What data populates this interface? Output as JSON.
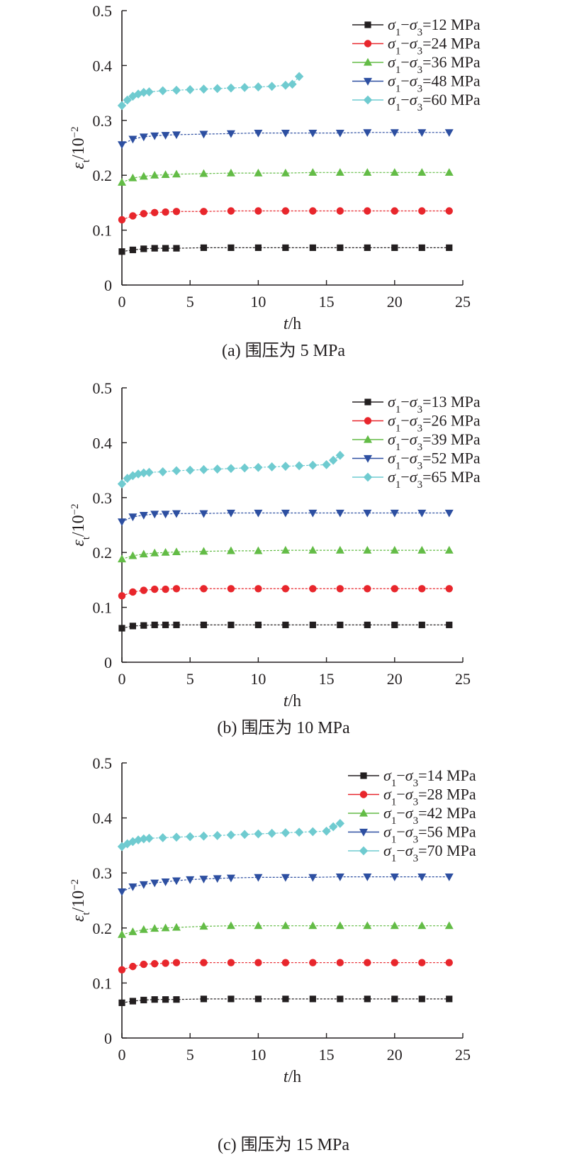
{
  "chart_data": [
    {
      "type": "line",
      "caption": "(a) 围压为 5 MPa",
      "xlabel": "t/h",
      "ylabel": "εt/10−2",
      "xlim": [
        0,
        25
      ],
      "ylim": [
        0,
        0.5
      ],
      "xticks": [
        "0",
        "5",
        "10",
        "15",
        "20",
        "25"
      ],
      "yticks": [
        "0",
        "0.1",
        "0.2",
        "0.3",
        "0.4",
        "0.5"
      ],
      "grid": false,
      "legend_position": "top-right",
      "series": [
        {
          "name": "σ1−σ3=12 MPa",
          "color": "#231f20",
          "marker": "square",
          "x": [
            0,
            0.8,
            1.6,
            2.4,
            3.2,
            4,
            6,
            8,
            10,
            12,
            14,
            16,
            18,
            20,
            22,
            24
          ],
          "y": [
            0.061,
            0.064,
            0.066,
            0.067,
            0.067,
            0.067,
            0.068,
            0.068,
            0.068,
            0.068,
            0.068,
            0.068,
            0.068,
            0.068,
            0.068,
            0.068
          ]
        },
        {
          "name": "σ1−σ3=24 MPa",
          "color": "#e8262c",
          "marker": "circle",
          "x": [
            0,
            0.8,
            1.6,
            2.4,
            3.2,
            4,
            6,
            8,
            10,
            12,
            14,
            16,
            18,
            20,
            22,
            24
          ],
          "y": [
            0.119,
            0.126,
            0.13,
            0.132,
            0.133,
            0.134,
            0.134,
            0.135,
            0.135,
            0.135,
            0.135,
            0.135,
            0.135,
            0.135,
            0.135,
            0.135
          ]
        },
        {
          "name": "σ1−σ3=36 MPa",
          "color": "#63bc46",
          "marker": "triangle-up",
          "x": [
            0,
            0.8,
            1.6,
            2.4,
            3.2,
            4,
            6,
            8,
            10,
            12,
            14,
            16,
            18,
            20,
            22,
            24
          ],
          "y": [
            0.187,
            0.195,
            0.198,
            0.2,
            0.201,
            0.202,
            0.203,
            0.204,
            0.204,
            0.204,
            0.205,
            0.205,
            0.205,
            0.205,
            0.205,
            0.205
          ]
        },
        {
          "name": "σ1−σ3=48 MPa",
          "color": "#2d4fa1",
          "marker": "triangle-down",
          "x": [
            0,
            0.8,
            1.6,
            2.4,
            3.2,
            4,
            6,
            8,
            10,
            12,
            14,
            16,
            18,
            20,
            22,
            24
          ],
          "y": [
            0.256,
            0.266,
            0.27,
            0.272,
            0.273,
            0.274,
            0.275,
            0.276,
            0.277,
            0.277,
            0.277,
            0.277,
            0.278,
            0.278,
            0.278,
            0.278
          ]
        },
        {
          "name": "σ1−σ3=60 MPa",
          "color": "#6fcbd0",
          "marker": "diamond",
          "x": [
            0,
            0.4,
            0.8,
            1.2,
            1.6,
            2,
            3,
            4,
            5,
            6,
            7,
            8,
            9,
            10,
            11,
            12,
            12.5,
            13
          ],
          "y": [
            0.327,
            0.337,
            0.344,
            0.348,
            0.351,
            0.352,
            0.354,
            0.355,
            0.356,
            0.357,
            0.358,
            0.359,
            0.36,
            0.361,
            0.362,
            0.364,
            0.366,
            0.38
          ]
        }
      ]
    },
    {
      "type": "line",
      "caption": "(b) 围压为 10 MPa",
      "xlabel": "t/h",
      "ylabel": "εt/10−2",
      "xlim": [
        0,
        25
      ],
      "ylim": [
        0,
        0.5
      ],
      "xticks": [
        "0",
        "5",
        "10",
        "15",
        "20",
        "25"
      ],
      "yticks": [
        "0",
        "0.1",
        "0.2",
        "0.3",
        "0.4",
        "0.5"
      ],
      "grid": false,
      "legend_position": "top-right",
      "series": [
        {
          "name": "σ1−σ3=13 MPa",
          "color": "#231f20",
          "marker": "square",
          "x": [
            0,
            0.8,
            1.6,
            2.4,
            3.2,
            4,
            6,
            8,
            10,
            12,
            14,
            16,
            18,
            20,
            22,
            24
          ],
          "y": [
            0.062,
            0.066,
            0.067,
            0.068,
            0.068,
            0.068,
            0.068,
            0.068,
            0.068,
            0.068,
            0.068,
            0.068,
            0.068,
            0.068,
            0.068,
            0.068
          ]
        },
        {
          "name": "σ1−σ3=26 MPa",
          "color": "#e8262c",
          "marker": "circle",
          "x": [
            0,
            0.8,
            1.6,
            2.4,
            3.2,
            4,
            6,
            8,
            10,
            12,
            14,
            16,
            18,
            20,
            22,
            24
          ],
          "y": [
            0.121,
            0.128,
            0.131,
            0.133,
            0.133,
            0.134,
            0.134,
            0.134,
            0.134,
            0.134,
            0.134,
            0.134,
            0.134,
            0.134,
            0.134,
            0.134
          ]
        },
        {
          "name": "σ1−σ3=39 MPa",
          "color": "#63bc46",
          "marker": "triangle-up",
          "x": [
            0,
            0.8,
            1.6,
            2.4,
            3.2,
            4,
            6,
            8,
            10,
            12,
            14,
            16,
            18,
            20,
            22,
            24
          ],
          "y": [
            0.188,
            0.194,
            0.197,
            0.199,
            0.2,
            0.201,
            0.202,
            0.203,
            0.203,
            0.204,
            0.204,
            0.204,
            0.204,
            0.204,
            0.204,
            0.204
          ]
        },
        {
          "name": "σ1−σ3=52 MPa",
          "color": "#2d4fa1",
          "marker": "triangle-down",
          "x": [
            0,
            0.8,
            1.6,
            2.4,
            3.2,
            4,
            6,
            8,
            10,
            12,
            14,
            16,
            18,
            20,
            22,
            24
          ],
          "y": [
            0.256,
            0.265,
            0.268,
            0.27,
            0.27,
            0.271,
            0.271,
            0.272,
            0.272,
            0.272,
            0.272,
            0.272,
            0.272,
            0.272,
            0.272,
            0.272
          ]
        },
        {
          "name": "σ1−σ3=65 MPa",
          "color": "#6fcbd0",
          "marker": "diamond",
          "x": [
            0,
            0.4,
            0.8,
            1.2,
            1.6,
            2,
            3,
            4,
            5,
            6,
            7,
            8,
            9,
            10,
            11,
            12,
            13,
            14,
            15,
            15.5,
            16
          ],
          "y": [
            0.325,
            0.335,
            0.34,
            0.343,
            0.345,
            0.346,
            0.347,
            0.349,
            0.35,
            0.351,
            0.352,
            0.353,
            0.354,
            0.355,
            0.356,
            0.357,
            0.358,
            0.359,
            0.36,
            0.368,
            0.377
          ]
        }
      ]
    },
    {
      "type": "line",
      "caption": "(c) 围压为 15 MPa",
      "xlabel": "t/h",
      "ylabel": "εt/10−2",
      "xlim": [
        0,
        25
      ],
      "ylim": [
        0,
        0.5
      ],
      "xticks": [
        "0",
        "5",
        "10",
        "15",
        "20",
        "25"
      ],
      "yticks": [
        "0",
        "0.1",
        "0.2",
        "0.3",
        "0.4",
        "0.5"
      ],
      "grid": false,
      "legend_position": "top-right",
      "series": [
        {
          "name": "σ1−σ3=14 MPa",
          "color": "#231f20",
          "marker": "square",
          "x": [
            0,
            0.8,
            1.6,
            2.4,
            3.2,
            4,
            6,
            8,
            10,
            12,
            14,
            16,
            18,
            20,
            22,
            24
          ],
          "y": [
            0.064,
            0.067,
            0.069,
            0.07,
            0.07,
            0.07,
            0.071,
            0.071,
            0.071,
            0.071,
            0.071,
            0.071,
            0.071,
            0.071,
            0.071,
            0.071
          ]
        },
        {
          "name": "σ1−σ3=28 MPa",
          "color": "#e8262c",
          "marker": "circle",
          "x": [
            0,
            0.8,
            1.6,
            2.4,
            3.2,
            4,
            6,
            8,
            10,
            12,
            14,
            16,
            18,
            20,
            22,
            24
          ],
          "y": [
            0.124,
            0.13,
            0.134,
            0.135,
            0.136,
            0.137,
            0.137,
            0.137,
            0.137,
            0.137,
            0.137,
            0.137,
            0.137,
            0.137,
            0.137,
            0.137
          ]
        },
        {
          "name": "σ1−σ3=42 MPa",
          "color": "#63bc46",
          "marker": "triangle-up",
          "x": [
            0,
            0.8,
            1.6,
            2.4,
            3.2,
            4,
            6,
            8,
            10,
            12,
            14,
            16,
            18,
            20,
            22,
            24
          ],
          "y": [
            0.188,
            0.193,
            0.197,
            0.199,
            0.2,
            0.201,
            0.203,
            0.204,
            0.204,
            0.204,
            0.204,
            0.204,
            0.204,
            0.204,
            0.204,
            0.204
          ]
        },
        {
          "name": "σ1−σ3=56 MPa",
          "color": "#2d4fa1",
          "marker": "triangle-down",
          "x": [
            0,
            0.8,
            1.6,
            2.4,
            3.2,
            4,
            5,
            6,
            7,
            8,
            10,
            12,
            14,
            16,
            18,
            20,
            22,
            24
          ],
          "y": [
            0.266,
            0.275,
            0.279,
            0.282,
            0.284,
            0.286,
            0.288,
            0.289,
            0.29,
            0.291,
            0.292,
            0.292,
            0.292,
            0.293,
            0.293,
            0.293,
            0.293,
            0.293
          ]
        },
        {
          "name": "σ1−σ3=70 MPa",
          "color": "#6fcbd0",
          "marker": "diamond",
          "x": [
            0,
            0.4,
            0.8,
            1.2,
            1.6,
            2,
            3,
            4,
            5,
            6,
            7,
            8,
            9,
            10,
            11,
            12,
            13,
            14,
            15,
            15.5,
            16
          ],
          "y": [
            0.348,
            0.353,
            0.357,
            0.36,
            0.362,
            0.363,
            0.364,
            0.365,
            0.366,
            0.367,
            0.368,
            0.369,
            0.37,
            0.371,
            0.372,
            0.373,
            0.374,
            0.375,
            0.376,
            0.384,
            0.39
          ]
        }
      ]
    }
  ]
}
